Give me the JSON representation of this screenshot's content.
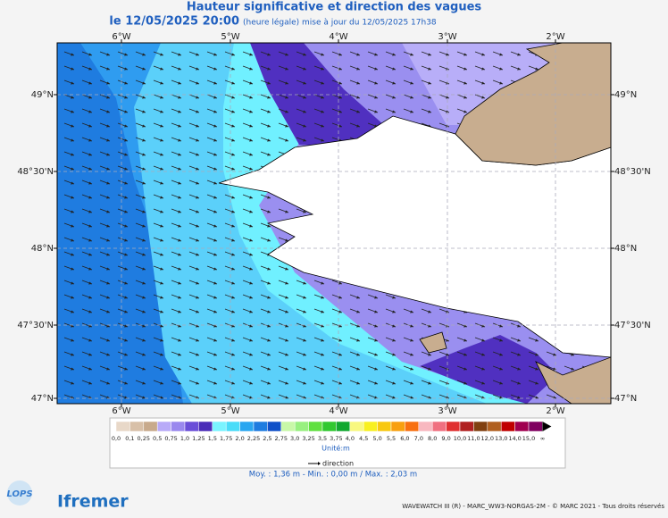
{
  "header": {
    "title": "Hauteur significative et direction des vagues",
    "date": "le 12/05/2025 20:00",
    "note": "(heure légale) mise à jour du 12/05/2025 17h38"
  },
  "map": {
    "lon_labels": [
      "6°W",
      "5°W",
      "4°W",
      "3°W",
      "2°W"
    ],
    "lat_labels": [
      "49°N",
      "48°30'N",
      "48°N",
      "47°30'N",
      "47°N"
    ]
  },
  "legend": {
    "labels": [
      "0,0",
      "0,1",
      "0,25",
      "0,5",
      "0,75",
      "1,0",
      "1,25",
      "1,5",
      "1,75",
      "2,0",
      "2,25",
      "2,5",
      "2,75",
      "3,0",
      "3,25",
      "3,5",
      "3,75",
      "4,0",
      "4,5",
      "5,0",
      "5,5",
      "6,0",
      "7,0",
      "8,0",
      "9,0",
      "10,0",
      "11,0",
      "12,0",
      "13,0",
      "14,0",
      "15,0",
      "∞"
    ],
    "colors": [
      "#e8d8c8",
      "#d8c0a8",
      "#c8aa8c",
      "#b8aaf8",
      "#9a88ee",
      "#6a4ed8",
      "#4a2cb8",
      "#7af4ff",
      "#4adcf8",
      "#2aa6f0",
      "#1e7ce0",
      "#1050c8",
      "#c8f8a8",
      "#98f080",
      "#60e040",
      "#30c830",
      "#10a830",
      "#f8f880",
      "#f8f020",
      "#f8c810",
      "#f8a010",
      "#f87010",
      "#f8b8c0",
      "#f07080",
      "#e03030",
      "#b02020",
      "#804010",
      "#b06020",
      "#c00000",
      "#a00050",
      "#800060"
    ],
    "unit": "Unité:m",
    "direction": "direction",
    "stats": "Moy. : 1,36 m   -   Min. : 0,00 m / Max. : 2,03 m"
  },
  "footer": {
    "credit": "WAVEWATCH III (R) - MARC_WW3-NORGAS-2M - © MARC 2021 - Tous droits réservés",
    "logo_left": "LOPS",
    "logo_right": "Ifremer"
  }
}
